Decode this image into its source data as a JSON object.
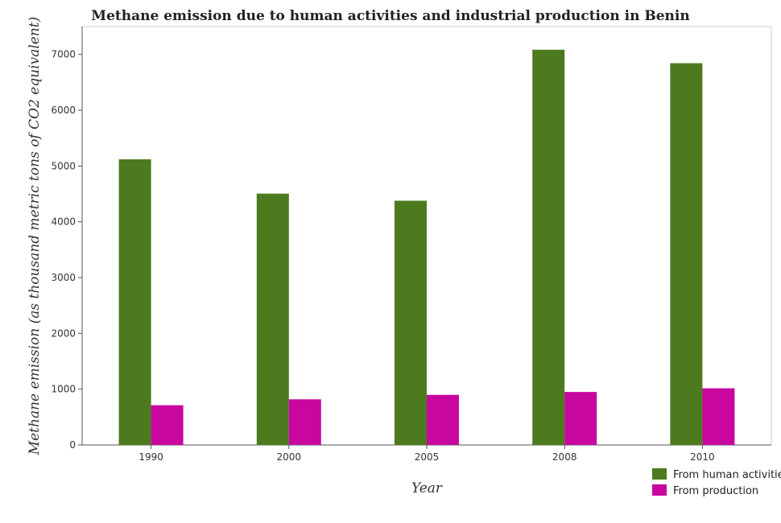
{
  "chart_data": {
    "type": "bar",
    "title": "Methane emission due to human activities and industrial production in Benin",
    "xlabel": "Year",
    "ylabel": "Methane emission (as thousand metric tons of CO2 equivalent)",
    "categories": [
      "1990",
      "2000",
      "2005",
      "2008",
      "2010"
    ],
    "series": [
      {
        "name": "From human activities",
        "color": "#4d7a1e",
        "values": [
          5120,
          4505,
          4378,
          7085,
          6843
        ]
      },
      {
        "name": "From production",
        "color": "#c8079f",
        "values": [
          712,
          818,
          898,
          950,
          1016
        ]
      }
    ],
    "ylim": [
      0,
      7500
    ],
    "yticks": [
      0,
      1000,
      2000,
      3000,
      4000,
      5000,
      6000,
      7000
    ],
    "grid": false,
    "legend_position": "bottom-right"
  }
}
